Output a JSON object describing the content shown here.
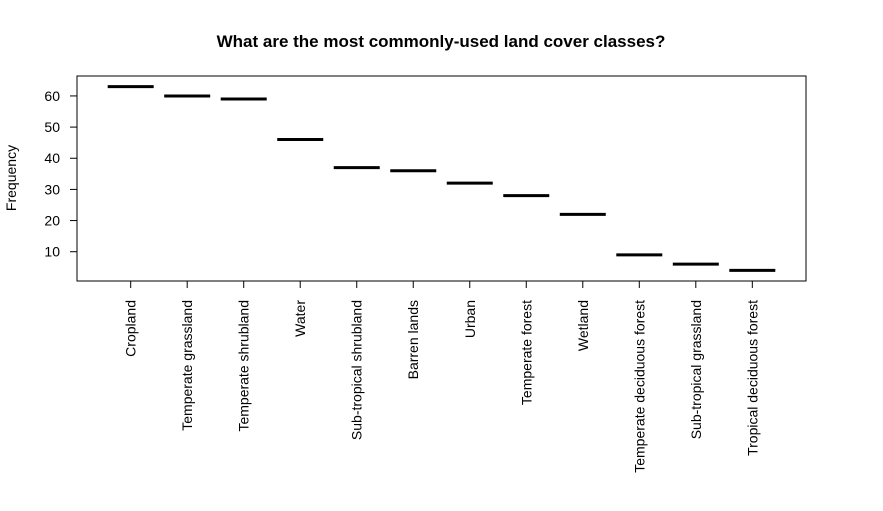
{
  "chart_data": {
    "type": "bar",
    "title": "What are the most commonly-used land cover classes?",
    "ylabel": "Frequency",
    "xlabel": "",
    "categories": [
      "Cropland",
      "Temperate grassland",
      "Temperate shrubland",
      "Water",
      "Sub-tropical shrubland",
      "Barren lands",
      "Urban",
      "Temperate forest",
      "Wetland",
      "Temperate deciduous forest",
      "Sub-tropical grassland",
      "Tropical deciduous forest"
    ],
    "values": [
      63,
      60,
      59,
      46,
      37,
      36,
      32,
      28,
      22,
      9,
      6,
      4
    ],
    "yticks": [
      10,
      20,
      30,
      40,
      50,
      60
    ],
    "ylim": [
      0.6,
      66.4
    ],
    "grid": false,
    "legend": "none",
    "colors": {
      "marks": "#000000",
      "axes": "#000000",
      "background": "#ffffff"
    }
  }
}
